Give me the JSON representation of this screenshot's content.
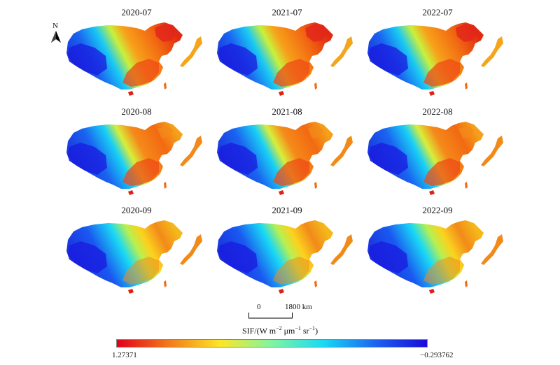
{
  "panels": [
    {
      "label": "2020-07",
      "month": 7
    },
    {
      "label": "2021-07",
      "month": 7
    },
    {
      "label": "2022-07",
      "month": 7
    },
    {
      "label": "2020-08",
      "month": 8
    },
    {
      "label": "2021-08",
      "month": 8
    },
    {
      "label": "2022-08",
      "month": 8
    },
    {
      "label": "2020-09",
      "month": 9
    },
    {
      "label": "2021-09",
      "month": 9
    },
    {
      "label": "2022-09",
      "month": 9
    }
  ],
  "north_arrow": {
    "label": "N"
  },
  "scale_bar": {
    "zero": "0",
    "distance": "1800 km"
  },
  "colorbar": {
    "title_prefix": "SIF/(W m",
    "exp1": "−2",
    "mid1": " μm",
    "exp2": "−1",
    "mid2": " sr",
    "exp3": "−1",
    "suffix": ")",
    "max_label": "1.27371",
    "min_label": "−0.293762",
    "colors": [
      "#e0001a",
      "#f27a1a",
      "#fde625",
      "#7ff5a0",
      "#19d9f5",
      "#1a64f0",
      "#1a0ad9"
    ]
  }
}
